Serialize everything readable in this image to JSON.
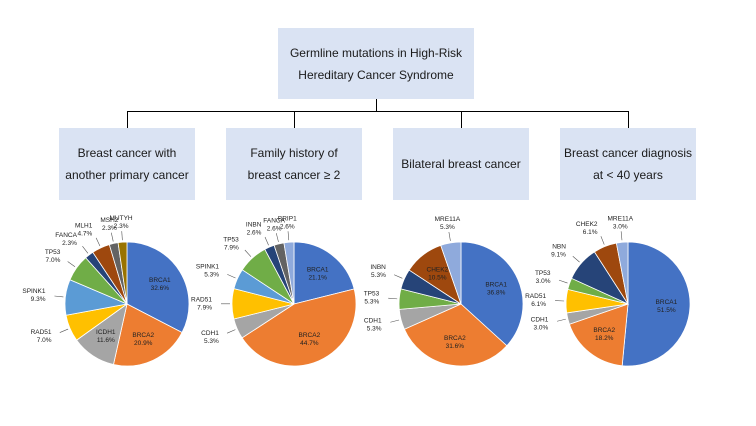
{
  "title": {
    "line1": "Germline mutations in High-Risk",
    "line2": "Hereditary Cancer Syndrome"
  },
  "categories": [
    {
      "line1": "Breast cancer with",
      "line2": "another primary cancer"
    },
    {
      "line1": "Family history of",
      "line2": "breast cancer ≥ 2"
    },
    {
      "line1": "Bilateral breast cancer",
      "line2": ""
    },
    {
      "line1": "Breast cancer diagnosis",
      "line2": "at < 40 years"
    }
  ],
  "chart_data": [
    {
      "type": "pie",
      "title": "Breast cancer with another primary cancer",
      "slices": [
        {
          "label": "BRCA1",
          "value": 32.6,
          "pct": "32.6%",
          "color": "#4472c4"
        },
        {
          "label": "BRCA2",
          "value": 20.9,
          "pct": "20.9%",
          "color": "#ed7d31"
        },
        {
          "label": "ICDH1",
          "value": 11.6,
          "pct": "11.6%",
          "color": "#a5a5a5"
        },
        {
          "label": "RAD51",
          "value": 7.0,
          "pct": "7.0%",
          "color": "#ffc000"
        },
        {
          "label": "SPINK1",
          "value": 9.3,
          "pct": "9.3%",
          "color": "#5b9bd5"
        },
        {
          "label": "TP53",
          "value": 7.0,
          "pct": "7.0%",
          "color": "#70ad47"
        },
        {
          "label": "FANCA",
          "value": 2.3,
          "pct": "2.3%",
          "color": "#264478"
        },
        {
          "label": "MLH1",
          "value": 4.7,
          "pct": "4.7%",
          "color": "#9e480e"
        },
        {
          "label": "MSH2",
          "value": 2.3,
          "pct": "2.3%",
          "color": "#636363"
        },
        {
          "label": "MUTYH",
          "value": 2.3,
          "pct": "2.3%",
          "color": "#997300"
        }
      ]
    },
    {
      "type": "pie",
      "title": "Family history of breast cancer ≥ 2",
      "slices": [
        {
          "label": "BRCA1",
          "value": 21.1,
          "pct": "21.1%",
          "color": "#4472c4"
        },
        {
          "label": "BRCA2",
          "value": 44.7,
          "pct": "44.7%",
          "color": "#ed7d31"
        },
        {
          "label": "CDH1",
          "value": 5.3,
          "pct": "5.3%",
          "color": "#a5a5a5"
        },
        {
          "label": "RAD51",
          "value": 7.9,
          "pct": "7.9%",
          "color": "#ffc000"
        },
        {
          "label": "SPINK1",
          "value": 5.3,
          "pct": "5.3%",
          "color": "#5b9bd5"
        },
        {
          "label": "TP53",
          "value": 7.9,
          "pct": "7.9%",
          "color": "#70ad47"
        },
        {
          "label": "INBN",
          "value": 2.6,
          "pct": "2.6%",
          "color": "#264478"
        },
        {
          "label": "FANCA",
          "value": 2.6,
          "pct": "2.6%",
          "color": "#636363"
        },
        {
          "label": "BRIP1",
          "value": 2.6,
          "pct": "2.6%",
          "color": "#8faadc"
        }
      ]
    },
    {
      "type": "pie",
      "title": "Bilateral breast cancer",
      "slices": [
        {
          "label": "BRCA1",
          "value": 36.8,
          "pct": "36.8%",
          "color": "#4472c4"
        },
        {
          "label": "BRCA2",
          "value": 31.6,
          "pct": "31.6%",
          "color": "#ed7d31"
        },
        {
          "label": "CDH1",
          "value": 5.3,
          "pct": "5.3%",
          "color": "#a5a5a5"
        },
        {
          "label": "TP53",
          "value": 5.3,
          "pct": "5.3%",
          "color": "#70ad47"
        },
        {
          "label": "INBN",
          "value": 5.3,
          "pct": "5.3%",
          "color": "#264478"
        },
        {
          "label": "CHEK2",
          "value": 10.5,
          "pct": "10.5%",
          "color": "#9e480e"
        },
        {
          "label": "MRE11A",
          "value": 5.3,
          "pct": "5.3%",
          "color": "#8faadc"
        }
      ]
    },
    {
      "type": "pie",
      "title": "Breast cancer diagnosis at < 40 years",
      "slices": [
        {
          "label": "BRCA1",
          "value": 51.5,
          "pct": "51.5%",
          "color": "#4472c4"
        },
        {
          "label": "BRCA2",
          "value": 18.2,
          "pct": "18.2%",
          "color": "#ed7d31"
        },
        {
          "label": "CDH1",
          "value": 3.0,
          "pct": "3.0%",
          "color": "#a5a5a5"
        },
        {
          "label": "RAD51",
          "value": 6.1,
          "pct": "6.1%",
          "color": "#ffc000"
        },
        {
          "label": "TP53",
          "value": 3.0,
          "pct": "3.0%",
          "color": "#70ad47"
        },
        {
          "label": "NBN",
          "value": 9.1,
          "pct": "9.1%",
          "color": "#264478"
        },
        {
          "label": "CHEK2",
          "value": 6.1,
          "pct": "6.1%",
          "color": "#9e480e"
        },
        {
          "label": "MRE11A",
          "value": 3.0,
          "pct": "3.0%",
          "color": "#8faadc"
        }
      ]
    }
  ]
}
